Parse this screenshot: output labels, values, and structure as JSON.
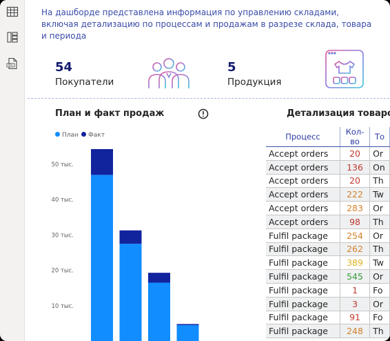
{
  "description": "На дашборде представлена информация по управлению складами, включая детализацию по процессам и продажам в разрезе склада, товара и периода",
  "kpis": [
    {
      "value": "54",
      "label": "Покупатели",
      "icon": "people-icon"
    },
    {
      "value": "5",
      "label": "Продукция",
      "icon": "product-shirt-icon"
    }
  ],
  "colors": {
    "plan": "#118dff",
    "fact": "#12239e",
    "title": "#3a4ca8"
  },
  "chart": {
    "title": "План и факт продаж",
    "legend": [
      "План",
      "Факт"
    ]
  },
  "chart_data": {
    "type": "bar",
    "stacked": true,
    "categories": [
      "",
      "",
      "",
      ""
    ],
    "series": [
      {
        "name": "План",
        "values": [
          47,
          27.5,
          16.5,
          4.5
        ]
      },
      {
        "name": "Факт",
        "values": [
          7.3,
          3.8,
          2.8,
          0.3
        ]
      }
    ],
    "yticks": [
      "10 тыс.",
      "20 тыс.",
      "30 тыс.",
      "40 тыс.",
      "50 тыс."
    ],
    "ytick_values": [
      10,
      20,
      30,
      40,
      50
    ],
    "ylim": [
      0,
      60
    ],
    "legend_position": "top-left"
  },
  "table": {
    "title": "Детализация товаров",
    "columns": [
      "Процесс",
      "Кол-во",
      "То"
    ],
    "rows": [
      {
        "process": "Accept orders",
        "qty": "20",
        "qty_color": "#c0392b",
        "tov": "Or"
      },
      {
        "process": "Accept orders",
        "qty": "136",
        "qty_color": "#c0392b",
        "tov": "On"
      },
      {
        "process": "Accept orders",
        "qty": "20",
        "qty_color": "#c0392b",
        "tov": "Th"
      },
      {
        "process": "Accept orders",
        "qty": "222",
        "qty_color": "#d4822a",
        "tov": "Tw"
      },
      {
        "process": "Accept orders",
        "qty": "283",
        "qty_color": "#d4822a",
        "tov": "Or"
      },
      {
        "process": "Accept orders",
        "qty": "98",
        "qty_color": "#c0392b",
        "tov": "Th"
      },
      {
        "process": "Fulfil package",
        "qty": "254",
        "qty_color": "#d4822a",
        "tov": "Or"
      },
      {
        "process": "Fulfil package",
        "qty": "262",
        "qty_color": "#d4822a",
        "tov": "Th"
      },
      {
        "process": "Fulfil package",
        "qty": "389",
        "qty_color": "#e0b020",
        "tov": "Tw"
      },
      {
        "process": "Fulfil package",
        "qty": "545",
        "qty_color": "#3a9d3a",
        "tov": "Or"
      },
      {
        "process": "Fulfil package",
        "qty": "1",
        "qty_color": "#c0392b",
        "tov": "Fo"
      },
      {
        "process": "Fulfil package",
        "qty": "3",
        "qty_color": "#c0392b",
        "tov": "Or"
      },
      {
        "process": "Fulfil package",
        "qty": "91",
        "qty_color": "#c0392b",
        "tov": "Fo"
      },
      {
        "process": "Fulfil package",
        "qty": "248",
        "qty_color": "#d4822a",
        "tov": "Th"
      }
    ]
  }
}
